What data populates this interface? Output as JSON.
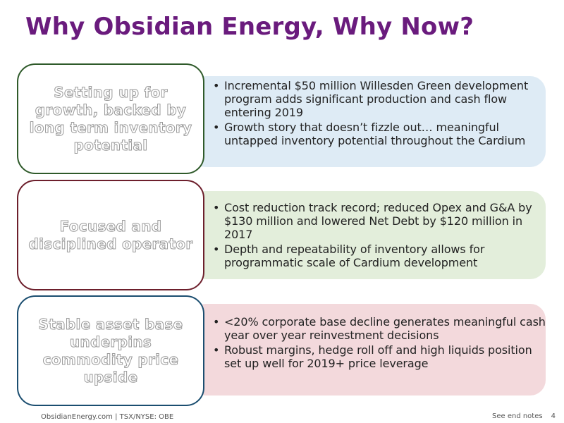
{
  "title": "Why Obsidian Energy, Why Now?",
  "rows": [
    {
      "label": "Setting up for growth, backed by long term inventory potential",
      "border_color": "#2f5a2a",
      "panel_color": "#deebf5",
      "bullets": [
        "Incremental $50 million Willesden Green development program adds significant production and cash flow entering 2019",
        "Growth story that doesn’t fizzle out… meaningful untapped inventory potential throughout the Cardium"
      ]
    },
    {
      "label": "Focused and disciplined operator",
      "border_color": "#6d1f2c",
      "panel_color": "#e3eedb",
      "bullets": [
        "Cost reduction track record; reduced Opex and G&A by $130 million and lowered Net Debt by $120 million in 2017",
        "Depth and repeatability of inventory allows for programmatic scale of Cardium development"
      ]
    },
    {
      "label": "Stable asset base underpins commodity price upside",
      "border_color": "#1b4e70",
      "panel_color": "#f3d9dc",
      "bullets": [
        "<20% corporate base decline generates meaningful cash year over year reinvestment decisions",
        "Robust margins, hedge roll off and high liquids position set up well for 2019+ price leverage"
      ]
    }
  ],
  "footer": {
    "left": "ObsidianEnergy.com | TSX/NYSE: OBE",
    "notes": "See end notes",
    "page": "4"
  }
}
